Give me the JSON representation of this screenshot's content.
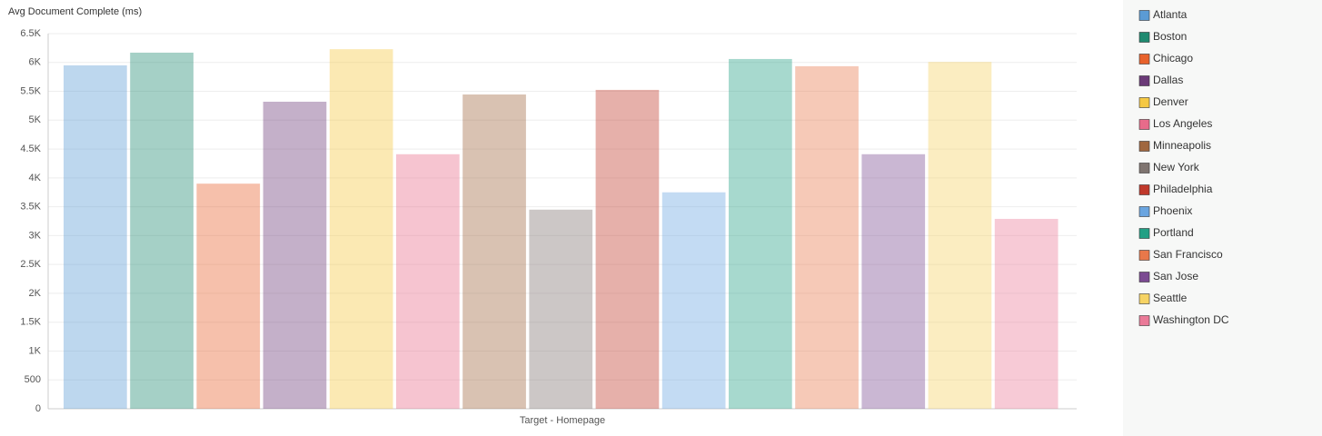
{
  "chart_data": {
    "type": "bar",
    "ylabel": "Avg Document Complete (ms)",
    "categories": [
      "Target - Homepage"
    ],
    "series": [
      {
        "name": "Atlanta",
        "color": "#5b9bd5",
        "values": [
          5950
        ]
      },
      {
        "name": "Boston",
        "color": "#1f8a70",
        "values": [
          6170
        ]
      },
      {
        "name": "Chicago",
        "color": "#e8622c",
        "values": [
          3900
        ]
      },
      {
        "name": "Dallas",
        "color": "#6b3a78",
        "values": [
          5320
        ]
      },
      {
        "name": "Denver",
        "color": "#f5c842",
        "values": [
          6230
        ]
      },
      {
        "name": "Los Angeles",
        "color": "#e86b8a",
        "values": [
          4410
        ]
      },
      {
        "name": "Minneapolis",
        "color": "#a0673f",
        "values": [
          5445
        ]
      },
      {
        "name": "New York",
        "color": "#7f7470",
        "values": [
          3450
        ]
      },
      {
        "name": "Philadelphia",
        "color": "#c0392b",
        "values": [
          5525
        ]
      },
      {
        "name": "Phoenix",
        "color": "#6aa5e0",
        "values": [
          3750
        ]
      },
      {
        "name": "Portland",
        "color": "#22a085",
        "values": [
          6060
        ]
      },
      {
        "name": "San Francisco",
        "color": "#e8784a",
        "values": [
          5935
        ]
      },
      {
        "name": "San Jose",
        "color": "#7b4a92",
        "values": [
          4410
        ]
      },
      {
        "name": "Seattle",
        "color": "#f6d364",
        "values": [
          6010
        ]
      },
      {
        "name": "Washington DC",
        "color": "#ea7a98",
        "values": [
          3290
        ]
      }
    ],
    "ylim": [
      0,
      6500
    ],
    "yticks": [
      0,
      500,
      {
        "value": 1000,
        "label": "1K"
      },
      {
        "value": 1500,
        "label": "1.5K"
      },
      {
        "value": 2000,
        "label": "2K"
      },
      {
        "value": 2500,
        "label": "2.5K"
      },
      {
        "value": 3000,
        "label": "3K"
      },
      {
        "value": 3500,
        "label": "3.5K"
      },
      {
        "value": 4000,
        "label": "4K"
      },
      {
        "value": 4500,
        "label": "4.5K"
      },
      {
        "value": 5000,
        "label": "5K"
      },
      {
        "value": 5500,
        "label": "5.5K"
      },
      {
        "value": 6000,
        "label": "6K"
      },
      {
        "value": 6500,
        "label": "6.5K"
      }
    ],
    "grid": true,
    "legend": "right"
  }
}
